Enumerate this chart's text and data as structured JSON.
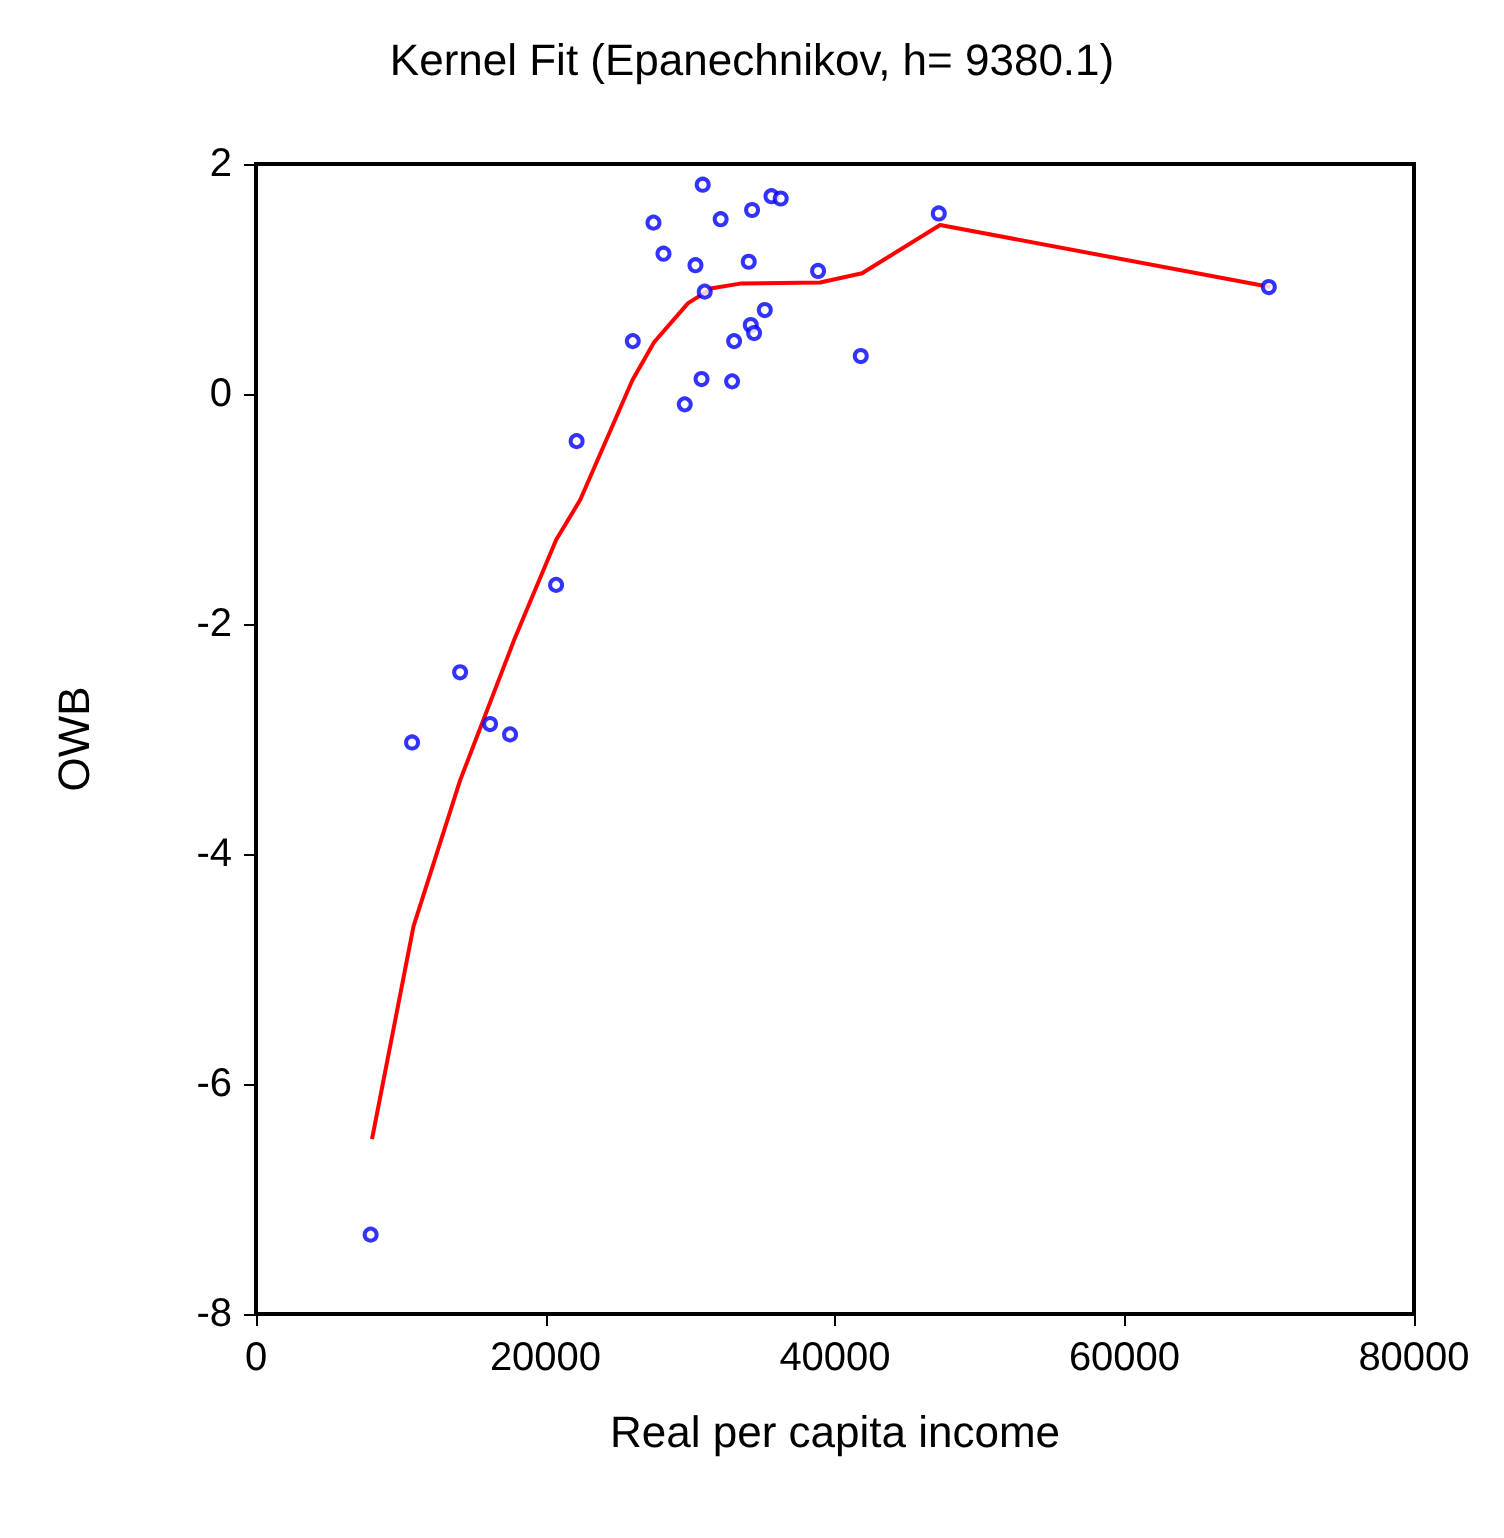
{
  "chart_data": {
    "type": "scatter",
    "title": "Kernel Fit (Epanechnikov, h= 9380.1)",
    "xlabel": "Real per capita income",
    "ylabel": "OWB",
    "xlim": [
      0,
      80000
    ],
    "xticks": [
      0,
      20000,
      40000,
      60000,
      80000
    ],
    "ylim": [
      -8,
      2
    ],
    "yticks": [
      -8,
      -6,
      -4,
      -2,
      0,
      2
    ],
    "grid": false,
    "series": [
      {
        "color": "#0000ff",
        "marker": "circle",
        "x": [
          7920,
          10780,
          14100,
          16170,
          17550,
          20730,
          22150,
          26030,
          27460,
          28150,
          29620,
          30780,
          30860,
          30360,
          31000,
          32100,
          32890,
          33030,
          34040,
          34180,
          34410,
          34270,
          35150,
          35610,
          36250,
          38830,
          41780,
          47170,
          69970
        ],
        "values": [
          -7.31,
          -3.03,
          -2.42,
          -2.87,
          -2.96,
          -1.66,
          -0.41,
          0.46,
          1.49,
          1.22,
          -0.09,
          0.13,
          1.82,
          1.12,
          0.89,
          1.52,
          0.11,
          0.46,
          1.15,
          0.6,
          0.53,
          1.6,
          0.73,
          1.72,
          1.7,
          1.07,
          0.33,
          1.57,
          0.93
        ]
      },
      {
        "type": "line",
        "color": "#ff0000",
        "marker": "none",
        "line_style": "solid",
        "x": [
          8015,
          10880,
          14100,
          17830,
          20730,
          22400,
          26000,
          27500,
          29850,
          31510,
          33440,
          38970,
          41870,
          47260,
          70070
        ],
        "values": [
          -6.48,
          -4.63,
          -3.36,
          -2.14,
          -1.27,
          -0.92,
          0.12,
          0.45,
          0.79,
          0.92,
          0.96,
          0.97,
          1.05,
          1.47,
          0.93
        ]
      }
    ]
  }
}
